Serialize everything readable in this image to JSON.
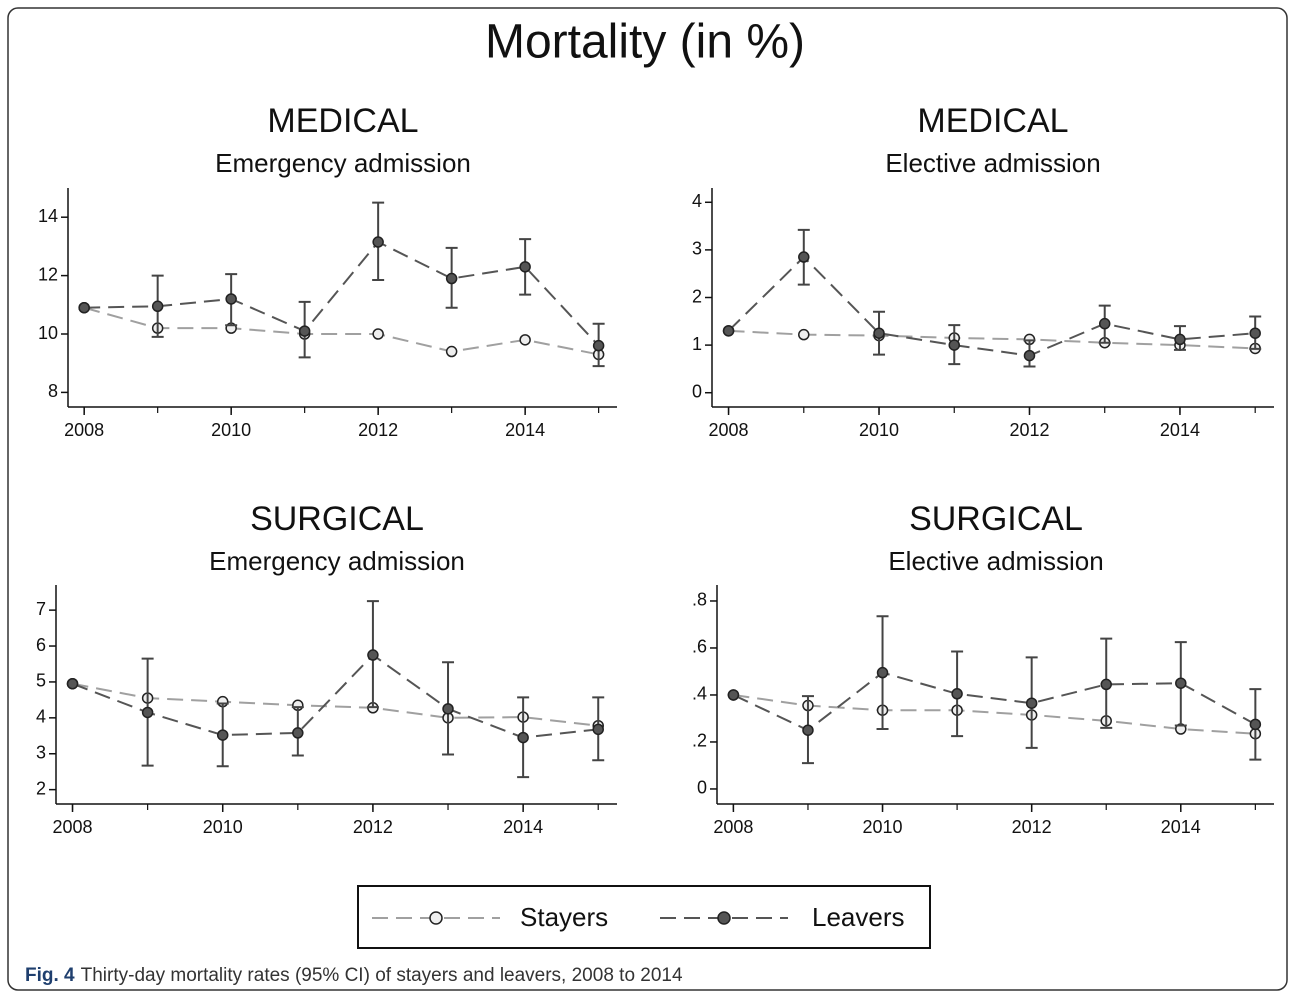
{
  "title": "Mortality (in %)",
  "chart_data": [
    {
      "type": "line",
      "title": "MEDICAL",
      "subtitle": "Emergency admission",
      "x": [
        2008,
        2009,
        2010,
        2011,
        2012,
        2013,
        2014,
        2015
      ],
      "xlim": [
        2007.78,
        2015.25
      ],
      "xticks": [
        2008,
        2010,
        2012,
        2014
      ],
      "ylim": [
        7.5,
        15
      ],
      "yticks": [
        8,
        10,
        12,
        14
      ],
      "series": [
        {
          "name": "Stayers",
          "color": "#a0a0a0",
          "marker_color": "#eeeeee",
          "values": [
            10.9,
            10.2,
            10.2,
            10.0,
            10.0,
            9.4,
            9.8,
            9.3
          ]
        },
        {
          "name": "Leavers",
          "color": "#555555",
          "marker_color": "#555555",
          "values": [
            10.9,
            10.95,
            11.2,
            10.1,
            13.15,
            11.9,
            12.3,
            9.6
          ],
          "lower": [
            null,
            9.9,
            10.3,
            9.2,
            11.85,
            10.9,
            11.35,
            8.9
          ],
          "upper": [
            null,
            12.0,
            12.05,
            11.1,
            14.5,
            12.95,
            13.25,
            10.35
          ]
        }
      ]
    },
    {
      "type": "line",
      "title": "MEDICAL",
      "subtitle": "Elective admission",
      "x": [
        2008,
        2009,
        2010,
        2011,
        2012,
        2013,
        2014,
        2015
      ],
      "xlim": [
        2007.78,
        2015.25
      ],
      "xticks": [
        2008,
        2010,
        2012,
        2014
      ],
      "ylim": [
        -0.3,
        4.3
      ],
      "yticks": [
        0,
        1,
        2,
        3,
        4
      ],
      "series": [
        {
          "name": "Stayers",
          "color": "#a0a0a0",
          "marker_color": "#eeeeee",
          "values": [
            1.3,
            1.22,
            1.2,
            1.15,
            1.12,
            1.05,
            1.0,
            0.93
          ]
        },
        {
          "name": "Leavers",
          "color": "#555555",
          "marker_color": "#555555",
          "values": [
            1.3,
            2.85,
            1.25,
            1.0,
            0.78,
            1.45,
            1.12,
            1.25
          ],
          "lower": [
            null,
            2.27,
            0.8,
            0.6,
            0.55,
            1.05,
            0.9,
            0.92
          ],
          "upper": [
            null,
            3.42,
            1.7,
            1.42,
            1.1,
            1.83,
            1.4,
            1.6
          ]
        }
      ]
    },
    {
      "type": "line",
      "title": "SURGICAL",
      "subtitle": "Emergency admission",
      "x": [
        2008,
        2009,
        2010,
        2011,
        2012,
        2013,
        2014,
        2015
      ],
      "xlim": [
        2007.78,
        2015.25
      ],
      "xticks": [
        2008,
        2010,
        2012,
        2014
      ],
      "ylim": [
        1.6,
        7.7
      ],
      "yticks": [
        2,
        3,
        4,
        5,
        6,
        7
      ],
      "series": [
        {
          "name": "Stayers",
          "color": "#a0a0a0",
          "marker_color": "#eeeeee",
          "values": [
            4.95,
            4.55,
            4.45,
            4.35,
            4.28,
            4.0,
            4.02,
            3.78
          ]
        },
        {
          "name": "Leavers",
          "color": "#555555",
          "marker_color": "#555555",
          "values": [
            4.95,
            4.15,
            3.52,
            3.58,
            5.75,
            4.25,
            3.45,
            3.68
          ],
          "lower": [
            null,
            2.67,
            2.65,
            2.95,
            4.3,
            2.98,
            2.35,
            2.82
          ],
          "upper": [
            null,
            5.65,
            4.4,
            4.3,
            7.25,
            5.55,
            4.57,
            4.57
          ]
        }
      ]
    },
    {
      "type": "line",
      "title": "SURGICAL",
      "subtitle": "Elective admission",
      "x": [
        2008,
        2009,
        2010,
        2011,
        2012,
        2013,
        2014,
        2015
      ],
      "xlim": [
        2007.78,
        2015.25
      ],
      "xticks": [
        2008,
        2010,
        2012,
        2014
      ],
      "ylim": [
        -0.064,
        0.868
      ],
      "yticks": [
        0,
        {
          "value": 0.2,
          "label": ".2"
        },
        {
          "value": 0.4,
          "label": ".4"
        },
        {
          "value": 0.6,
          "label": ".6"
        },
        {
          "value": 0.8,
          "label": ".8"
        }
      ],
      "series": [
        {
          "name": "Stayers",
          "color": "#a0a0a0",
          "marker_color": "#eeeeee",
          "values": [
            0.4,
            0.355,
            0.335,
            0.335,
            0.315,
            0.29,
            0.255,
            0.235
          ]
        },
        {
          "name": "Leavers",
          "color": "#555555",
          "marker_color": "#555555",
          "values": [
            0.4,
            0.25,
            0.495,
            0.405,
            0.365,
            0.445,
            0.45,
            0.275
          ],
          "lower": [
            null,
            0.11,
            0.255,
            0.225,
            0.175,
            0.26,
            0.27,
            0.125
          ],
          "upper": [
            null,
            0.395,
            0.735,
            0.585,
            0.56,
            0.64,
            0.625,
            0.425
          ]
        }
      ]
    }
  ],
  "caption": {
    "label": "Fig. 4",
    "text": "Thirty-day mortality rates (95% CI) of stayers and leavers, 2008 to 2014"
  }
}
